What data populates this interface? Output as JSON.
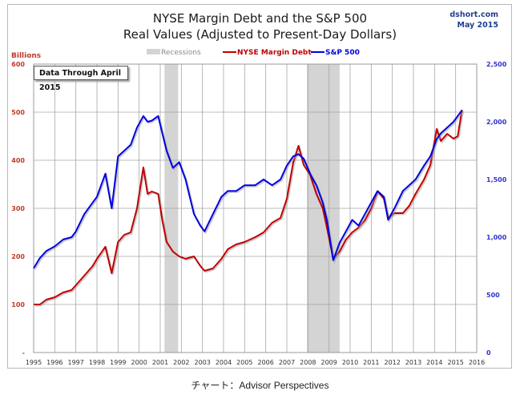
{
  "header": {
    "title_line1": "NYSE Margin Debt and the S&P 500",
    "title_line2": "Real Values (Adjusted to Present-Day Dollars)",
    "source_line1": "dshort.com",
    "source_line2": "May 2015"
  },
  "annotation": "Data Through April 2015",
  "caption": "チャート：Advisor Perspectives",
  "colors": {
    "margin_debt": "#c00000",
    "sp500": "#0000e0",
    "recession": "#d4d4d4",
    "left_axis": "#c0392b",
    "right_axis": "#3333cc",
    "grid": "#a6a6a6"
  },
  "chart_data": {
    "type": "line",
    "title": "NYSE Margin Debt and the S&P 500 — Real Values (Adjusted to Present-Day Dollars)",
    "xlabel": "",
    "ylabel_left": "Billions",
    "ylabel_right": "",
    "xlim": [
      1995,
      2016
    ],
    "ylim_left": [
      0,
      600
    ],
    "ylim_right": [
      0,
      2500
    ],
    "grid": true,
    "legend": "top-center",
    "legend_entries": [
      "Recessions",
      "NYSE Margin Debt",
      "S&P 500"
    ],
    "x_ticks": [
      "1995",
      "1996",
      "1997",
      "1998",
      "1999",
      "2000",
      "2001",
      "2002",
      "2003",
      "2004",
      "2005",
      "2006",
      "2007",
      "2008",
      "2009",
      "2010",
      "2011",
      "2012",
      "2013",
      "2014",
      "2015",
      "2016"
    ],
    "y_ticks_left": [
      "-",
      "100",
      "200",
      "300",
      "400",
      "500",
      "600"
    ],
    "y_ticks_right": [
      "0",
      "500",
      "1,000",
      "1,500",
      "2,000",
      "2,500"
    ],
    "recessions": [
      [
        2001.2,
        2001.85
      ],
      [
        2007.95,
        2009.5
      ]
    ],
    "series": [
      {
        "name": "NYSE Margin Debt",
        "axis": "left",
        "x": [
          1995.0,
          1995.3,
          1995.6,
          1996.0,
          1996.4,
          1996.8,
          1997.0,
          1997.4,
          1997.8,
          1998.0,
          1998.4,
          1998.7,
          1999.0,
          1999.3,
          1999.6,
          1999.9,
          2000.2,
          2000.4,
          2000.6,
          2000.9,
          2001.1,
          2001.3,
          2001.6,
          2001.9,
          2002.2,
          2002.6,
          2002.9,
          2003.1,
          2003.5,
          2003.9,
          2004.2,
          2004.6,
          2005.0,
          2005.5,
          2005.9,
          2006.3,
          2006.7,
          2007.0,
          2007.3,
          2007.55,
          2007.8,
          2008.1,
          2008.4,
          2008.7,
          2008.9,
          2009.2,
          2009.5,
          2009.8,
          2010.1,
          2010.4,
          2010.7,
          2011.0,
          2011.3,
          2011.6,
          2011.8,
          2012.1,
          2012.5,
          2012.8,
          2013.1,
          2013.5,
          2013.8,
          2014.1,
          2014.3,
          2014.6,
          2014.9,
          2015.1,
          2015.3
        ],
        "values": [
          100,
          100,
          110,
          115,
          125,
          130,
          140,
          160,
          180,
          195,
          220,
          165,
          230,
          245,
          250,
          300,
          385,
          330,
          335,
          330,
          275,
          230,
          210,
          200,
          195,
          200,
          180,
          170,
          175,
          195,
          215,
          225,
          230,
          240,
          250,
          270,
          280,
          320,
          395,
          430,
          390,
          370,
          330,
          300,
          260,
          195,
          210,
          235,
          250,
          260,
          275,
          300,
          335,
          320,
          280,
          290,
          290,
          305,
          330,
          360,
          390,
          465,
          440,
          455,
          445,
          450,
          505
        ]
      },
      {
        "name": "S&P 500",
        "axis": "right",
        "x": [
          1995.0,
          1995.3,
          1995.6,
          1996.0,
          1996.4,
          1996.8,
          1997.0,
          1997.4,
          1997.8,
          1998.0,
          1998.4,
          1998.7,
          1999.0,
          1999.3,
          1999.6,
          1999.9,
          2000.2,
          2000.4,
          2000.6,
          2000.9,
          2001.1,
          2001.3,
          2001.6,
          2001.9,
          2002.2,
          2002.6,
          2002.9,
          2003.1,
          2003.5,
          2003.9,
          2004.2,
          2004.6,
          2005.0,
          2005.5,
          2005.9,
          2006.3,
          2006.7,
          2007.0,
          2007.3,
          2007.55,
          2007.8,
          2008.1,
          2008.4,
          2008.7,
          2008.9,
          2009.2,
          2009.5,
          2009.8,
          2010.1,
          2010.4,
          2010.7,
          2011.0,
          2011.3,
          2011.6,
          2011.8,
          2012.1,
          2012.5,
          2012.8,
          2013.1,
          2013.5,
          2013.8,
          2014.1,
          2014.3,
          2014.6,
          2014.9,
          2015.1,
          2015.3
        ],
        "values": [
          730,
          820,
          880,
          920,
          980,
          1000,
          1050,
          1200,
          1300,
          1350,
          1550,
          1250,
          1700,
          1750,
          1800,
          1950,
          2050,
          2000,
          2010,
          2050,
          1900,
          1750,
          1600,
          1650,
          1500,
          1200,
          1100,
          1050,
          1200,
          1350,
          1400,
          1400,
          1450,
          1450,
          1500,
          1450,
          1500,
          1620,
          1700,
          1720,
          1680,
          1550,
          1450,
          1300,
          1150,
          800,
          950,
          1050,
          1150,
          1100,
          1200,
          1300,
          1400,
          1350,
          1150,
          1250,
          1400,
          1450,
          1500,
          1620,
          1700,
          1850,
          1900,
          1950,
          2000,
          2050,
          2100
        ]
      }
    ]
  }
}
